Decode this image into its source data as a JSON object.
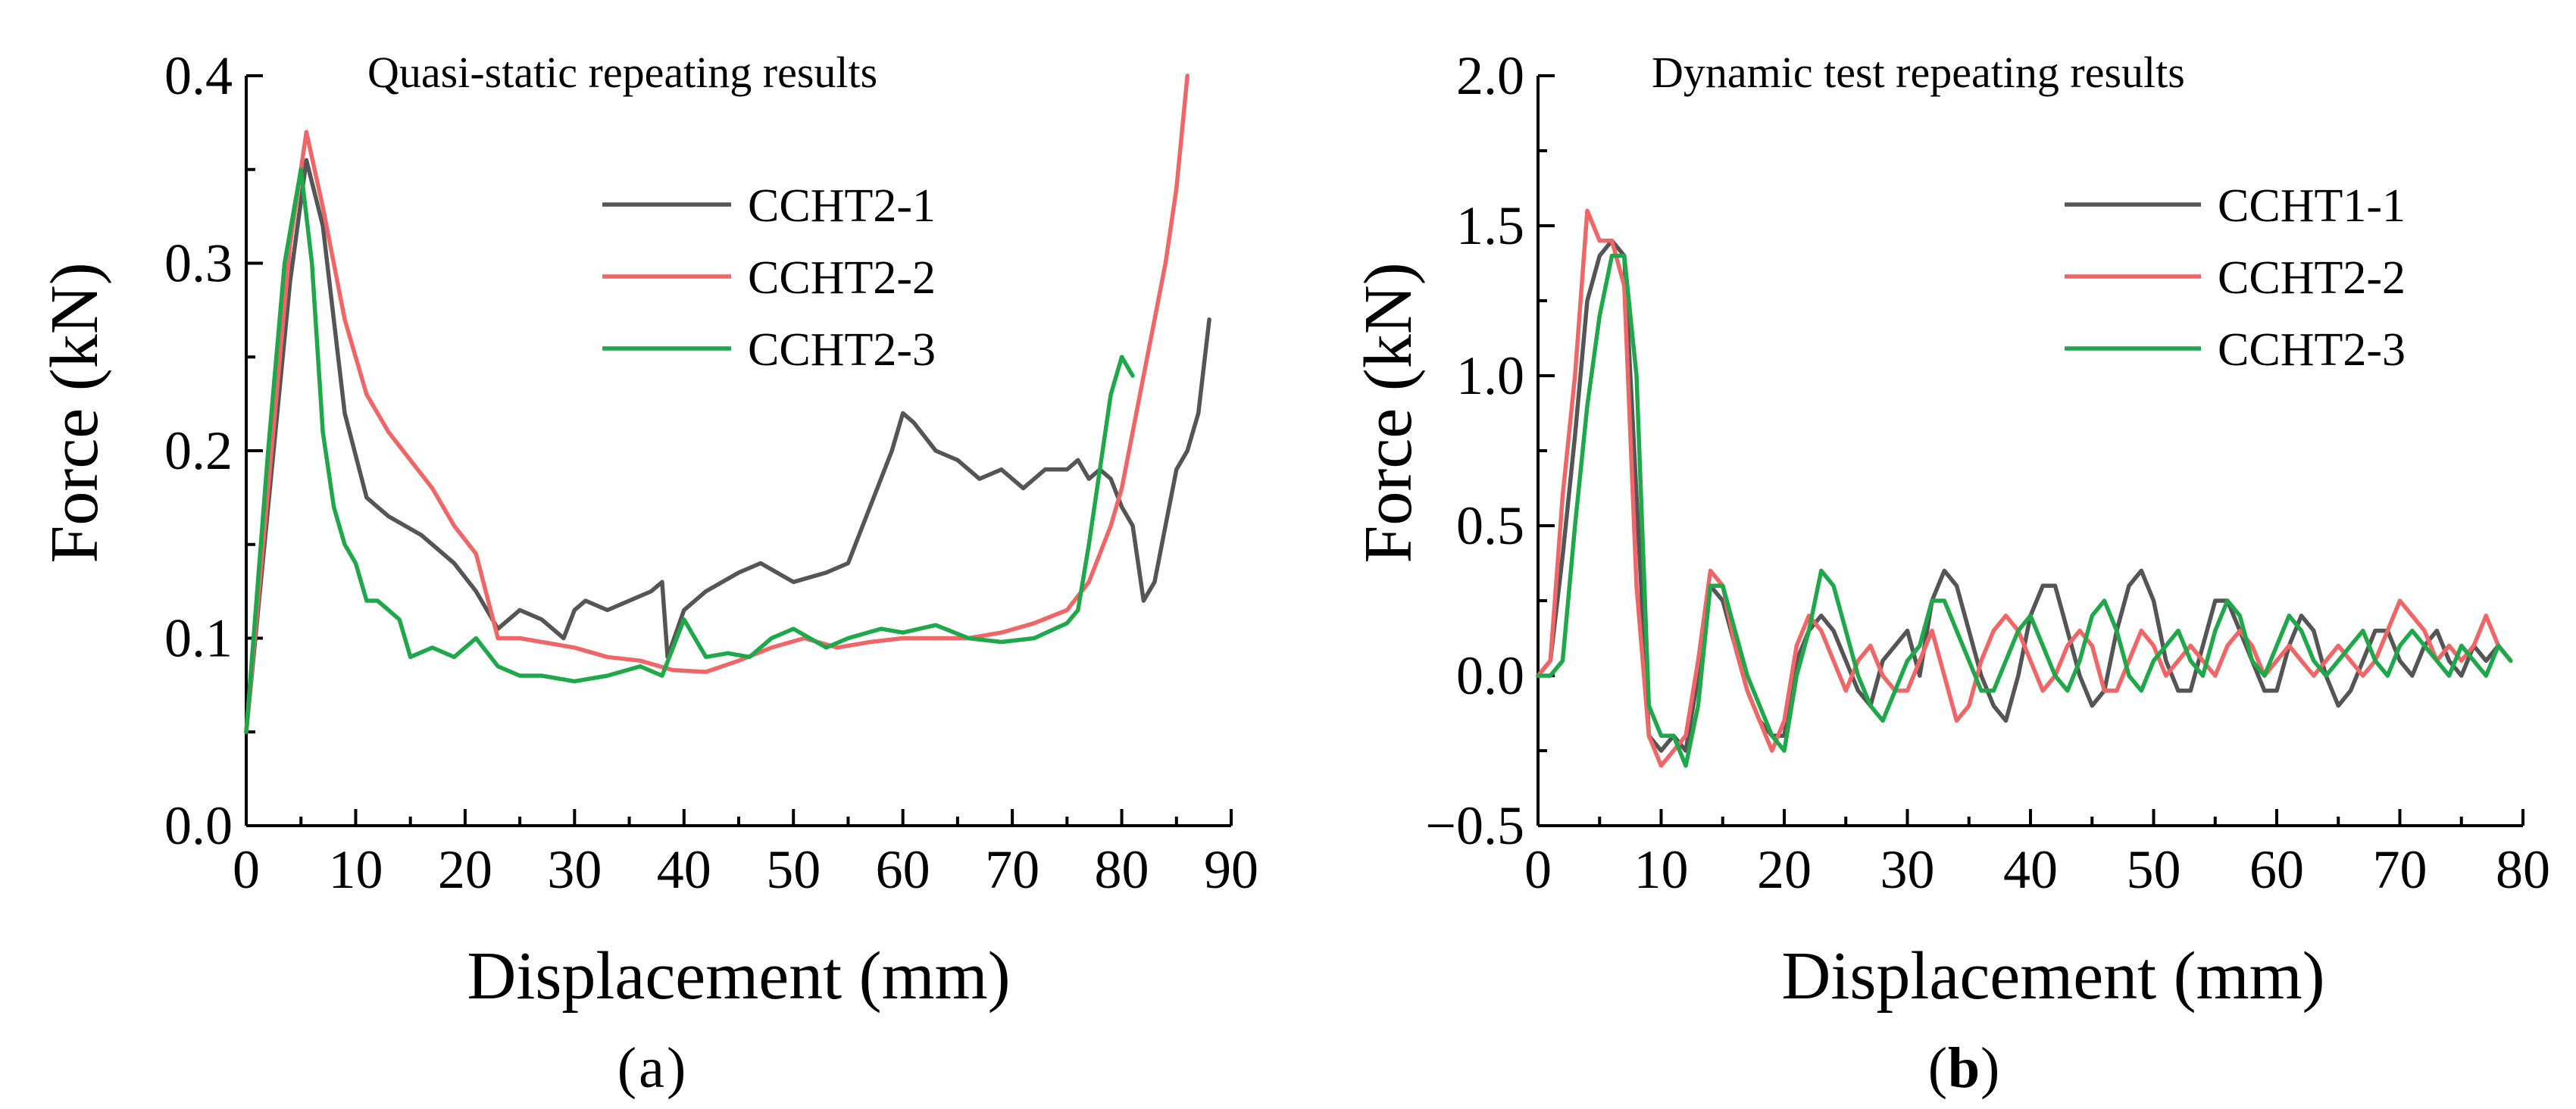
{
  "chart_data": [
    {
      "type": "line",
      "title": "Quasi-static repeating results",
      "xlabel": "Displacement (mm)",
      "ylabel": "Force (kN)",
      "panel_label": "a",
      "xlim": [
        0,
        90
      ],
      "ylim": [
        0.0,
        0.4
      ],
      "xticks": [
        0,
        10,
        20,
        30,
        40,
        50,
        60,
        70,
        80,
        90
      ],
      "xtick_labels": [
        "0",
        "10",
        "20",
        "30",
        "40",
        "50",
        "60",
        "70",
        "80",
        "90"
      ],
      "yticks": [
        0.0,
        0.1,
        0.2,
        0.3,
        0.4
      ],
      "ytick_labels": [
        "0.0",
        "0.1",
        "0.2",
        "0.3",
        "0.4"
      ],
      "legend_position": "upper-center",
      "grid": false,
      "series": [
        {
          "name": "CCHT2-1",
          "color": "#555555",
          "x": [
            0,
            2,
            4,
            5.5,
            7,
            9,
            11,
            13,
            16,
            19,
            21,
            23,
            25,
            27,
            29,
            30,
            31,
            33,
            35,
            37,
            38,
            38.5,
            40,
            42,
            45,
            47,
            50,
            53,
            55,
            57,
            59,
            60,
            61,
            63,
            65,
            67,
            69,
            71,
            73,
            75,
            76,
            77,
            78,
            79,
            80,
            81,
            82,
            83,
            84,
            85,
            86,
            87,
            88
          ],
          "y": [
            0.05,
            0.17,
            0.29,
            0.355,
            0.32,
            0.22,
            0.175,
            0.165,
            0.155,
            0.14,
            0.125,
            0.105,
            0.115,
            0.11,
            0.1,
            0.115,
            0.12,
            0.115,
            0.12,
            0.125,
            0.13,
            0.09,
            0.115,
            0.125,
            0.135,
            0.14,
            0.13,
            0.135,
            0.14,
            0.17,
            0.2,
            0.22,
            0.215,
            0.2,
            0.195,
            0.185,
            0.19,
            0.18,
            0.19,
            0.19,
            0.195,
            0.185,
            0.19,
            0.185,
            0.17,
            0.16,
            0.12,
            0.13,
            0.16,
            0.19,
            0.2,
            0.22,
            0.27
          ]
        },
        {
          "name": "CCHT2-2",
          "color": "#f06666",
          "x": [
            0,
            2,
            4,
            5.5,
            7,
            9,
            11,
            13,
            15,
            17,
            19,
            21,
            23,
            25,
            27,
            30,
            33,
            36,
            39,
            42,
            45,
            48,
            51,
            54,
            57,
            60,
            63,
            66,
            69,
            72,
            75,
            77,
            78,
            79,
            80,
            81,
            82,
            83,
            84,
            85,
            86
          ],
          "y": [
            0.05,
            0.18,
            0.31,
            0.37,
            0.33,
            0.27,
            0.23,
            0.21,
            0.195,
            0.18,
            0.16,
            0.145,
            0.1,
            0.1,
            0.098,
            0.095,
            0.09,
            0.088,
            0.083,
            0.082,
            0.088,
            0.095,
            0.1,
            0.095,
            0.098,
            0.1,
            0.1,
            0.1,
            0.103,
            0.108,
            0.115,
            0.13,
            0.145,
            0.16,
            0.18,
            0.21,
            0.24,
            0.27,
            0.3,
            0.34,
            0.4
          ]
        },
        {
          "name": "CCHT2-3",
          "color": "#1ea84a",
          "x": [
            0,
            2,
            3.5,
            5,
            6,
            7,
            8,
            9,
            10,
            11,
            12,
            13,
            14,
            15,
            17,
            19,
            21,
            23,
            25,
            27,
            30,
            33,
            36,
            38,
            40,
            42,
            44,
            46,
            48,
            50,
            53,
            55,
            58,
            60,
            63,
            66,
            69,
            72,
            75,
            76,
            77,
            78,
            79,
            80,
            81
          ],
          "y": [
            0.05,
            0.2,
            0.3,
            0.35,
            0.3,
            0.21,
            0.17,
            0.15,
            0.14,
            0.12,
            0.12,
            0.115,
            0.11,
            0.09,
            0.095,
            0.09,
            0.1,
            0.085,
            0.08,
            0.08,
            0.077,
            0.08,
            0.085,
            0.08,
            0.11,
            0.09,
            0.092,
            0.09,
            0.1,
            0.105,
            0.095,
            0.1,
            0.105,
            0.103,
            0.107,
            0.1,
            0.098,
            0.1,
            0.108,
            0.115,
            0.15,
            0.19,
            0.23,
            0.25,
            0.24
          ]
        }
      ]
    },
    {
      "type": "line",
      "title": "Dynamic test repeating results",
      "xlabel": "Displacement (mm)",
      "ylabel": "Force (kN)",
      "panel_label": "b",
      "xlim": [
        0,
        80
      ],
      "ylim": [
        -0.5,
        2.0
      ],
      "xticks": [
        0,
        10,
        20,
        30,
        40,
        50,
        60,
        70,
        80
      ],
      "xtick_labels": [
        "0",
        "10",
        "20",
        "30",
        "40",
        "50",
        "60",
        "70",
        "80"
      ],
      "yticks": [
        -0.5,
        0.0,
        0.5,
        1.0,
        1.5,
        2.0
      ],
      "ytick_labels": [
        "−0.5",
        "0.0",
        "0.5",
        "1.0",
        "1.5",
        "2.0"
      ],
      "legend_position": "upper-right",
      "grid": false,
      "series": [
        {
          "name": "CCHT1-1",
          "color": "#555555",
          "x": [
            0,
            1,
            2,
            3,
            4,
            5,
            6,
            7,
            8,
            9,
            10,
            11,
            12,
            13,
            14,
            15,
            16,
            17,
            18,
            19,
            20,
            21,
            22,
            23,
            24,
            25,
            26,
            27,
            28,
            29,
            30,
            31,
            32,
            33,
            34,
            35,
            36,
            37,
            38,
            39,
            40,
            41,
            42,
            43,
            44,
            45,
            46,
            47,
            48,
            49,
            50,
            51,
            52,
            53,
            54,
            55,
            56,
            57,
            58,
            59,
            60,
            61,
            62,
            63,
            64,
            65,
            66,
            67,
            68,
            69,
            70,
            71,
            72,
            73,
            74,
            75,
            76,
            77,
            78,
            79
          ],
          "y": [
            0.0,
            0.05,
            0.4,
            0.8,
            1.25,
            1.4,
            1.45,
            1.4,
            0.6,
            -0.2,
            -0.25,
            -0.2,
            -0.25,
            0.0,
            0.3,
            0.25,
            0.1,
            -0.05,
            -0.15,
            -0.2,
            -0.2,
            0.05,
            0.15,
            0.2,
            0.15,
            0.05,
            -0.05,
            -0.1,
            0.05,
            0.1,
            0.15,
            0.0,
            0.25,
            0.35,
            0.3,
            0.15,
            0.0,
            -0.1,
            -0.15,
            0.0,
            0.2,
            0.3,
            0.3,
            0.15,
            0.0,
            -0.1,
            -0.05,
            0.15,
            0.3,
            0.35,
            0.25,
            0.05,
            -0.05,
            -0.05,
            0.1,
            0.25,
            0.25,
            0.15,
            0.05,
            -0.05,
            -0.05,
            0.1,
            0.2,
            0.15,
            0.0,
            -0.1,
            -0.05,
            0.05,
            0.15,
            0.15,
            0.05,
            0.0,
            0.1,
            0.15,
            0.05,
            0.0,
            0.1,
            0.05,
            0.1,
            0.05
          ]
        },
        {
          "name": "CCHT2-2",
          "color": "#f06666",
          "x": [
            0,
            1,
            2,
            3,
            4,
            5,
            6,
            7,
            8,
            9,
            10,
            11,
            12,
            13,
            14,
            15,
            16,
            17,
            18,
            19,
            20,
            21,
            22,
            23,
            24,
            25,
            26,
            27,
            28,
            29,
            30,
            31,
            32,
            33,
            34,
            35,
            36,
            37,
            38,
            39,
            40,
            41,
            42,
            43,
            44,
            45,
            46,
            47,
            48,
            49,
            50,
            51,
            52,
            53,
            54,
            55,
            56,
            57,
            58,
            59,
            60,
            61,
            62,
            63,
            64,
            65,
            66,
            67,
            68,
            69,
            70,
            71,
            72,
            73,
            74,
            75,
            76,
            77,
            78,
            79
          ],
          "y": [
            0.0,
            0.05,
            0.6,
            1.0,
            1.55,
            1.45,
            1.45,
            1.3,
            0.3,
            -0.2,
            -0.3,
            -0.25,
            -0.2,
            0.05,
            0.35,
            0.3,
            0.1,
            -0.05,
            -0.15,
            -0.25,
            -0.15,
            0.1,
            0.2,
            0.15,
            0.05,
            -0.05,
            0.05,
            0.1,
            0.0,
            -0.05,
            -0.05,
            0.05,
            0.15,
            0.0,
            -0.15,
            -0.1,
            0.05,
            0.15,
            0.2,
            0.15,
            0.05,
            -0.05,
            0.0,
            0.1,
            0.15,
            0.1,
            -0.05,
            -0.05,
            0.05,
            0.15,
            0.1,
            0.0,
            0.05,
            0.1,
            0.05,
            0.0,
            0.1,
            0.15,
            0.1,
            0.0,
            0.05,
            0.1,
            0.05,
            0.0,
            0.05,
            0.1,
            0.05,
            0.0,
            0.05,
            0.15,
            0.25,
            0.2,
            0.15,
            0.05,
            0.1,
            0.05,
            0.1,
            0.2,
            0.1,
            0.05
          ]
        },
        {
          "name": "CCHT2-3",
          "color": "#1ea84a",
          "x": [
            0,
            1,
            2,
            3,
            4,
            5,
            6,
            7,
            8,
            9,
            10,
            11,
            12,
            13,
            14,
            15,
            16,
            17,
            18,
            19,
            20,
            21,
            22,
            23,
            24,
            25,
            26,
            27,
            28,
            29,
            30,
            31,
            32,
            33,
            34,
            35,
            36,
            37,
            38,
            39,
            40,
            41,
            42,
            43,
            44,
            45,
            46,
            47,
            48,
            49,
            50,
            51,
            52,
            53,
            54,
            55,
            56,
            57,
            58,
            59,
            60,
            61,
            62,
            63,
            64,
            65,
            66,
            67,
            68,
            69,
            70,
            71,
            72,
            73,
            74,
            75,
            76,
            77,
            78,
            79
          ],
          "y": [
            0.0,
            0.0,
            0.05,
            0.5,
            0.9,
            1.2,
            1.4,
            1.4,
            1.0,
            -0.1,
            -0.2,
            -0.2,
            -0.3,
            -0.1,
            0.3,
            0.3,
            0.15,
            0.0,
            -0.1,
            -0.2,
            -0.25,
            0.0,
            0.15,
            0.35,
            0.3,
            0.15,
            0.0,
            -0.1,
            -0.15,
            -0.05,
            0.05,
            0.1,
            0.25,
            0.25,
            0.15,
            0.05,
            -0.05,
            -0.05,
            0.05,
            0.15,
            0.2,
            0.1,
            0.0,
            -0.05,
            0.05,
            0.2,
            0.25,
            0.15,
            0.0,
            -0.05,
            0.05,
            0.1,
            0.15,
            0.05,
            0.0,
            0.15,
            0.25,
            0.2,
            0.05,
            0.0,
            0.1,
            0.2,
            0.15,
            0.05,
            0.0,
            0.05,
            0.1,
            0.15,
            0.05,
            0.0,
            0.1,
            0.15,
            0.1,
            0.05,
            0.0,
            0.1,
            0.05,
            0.0,
            0.1,
            0.05
          ]
        }
      ]
    }
  ]
}
